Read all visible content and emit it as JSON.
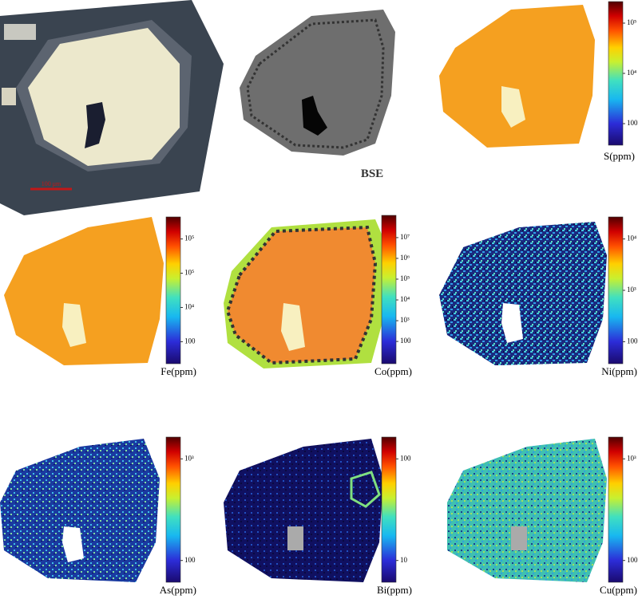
{
  "panels": [
    {
      "scale_bar": "100 μm"
    },
    {
      "label": "BSE"
    },
    {
      "label": "S(ppm)",
      "ticks": [
        "10⁵",
        "10⁴",
        "100"
      ]
    },
    {
      "label": "Fe(ppm)",
      "ticks": [
        "10⁵",
        "10⁵",
        "10⁴",
        "100"
      ]
    },
    {
      "label": "Co(ppm)",
      "ticks": [
        "10⁷",
        "10⁶",
        "10⁵",
        "10⁴",
        "10³",
        "100"
      ]
    },
    {
      "label": "Ni(ppm)",
      "ticks": [
        "10⁴",
        "10³",
        "100"
      ]
    },
    {
      "label": "As(ppm)",
      "ticks": [
        "10³",
        "100"
      ]
    },
    {
      "label": "Bi(ppm)",
      "ticks": [
        "100",
        "10"
      ]
    },
    {
      "label": "Cu(ppm)",
      "ticks": [
        "10³",
        "100"
      ]
    }
  ]
}
